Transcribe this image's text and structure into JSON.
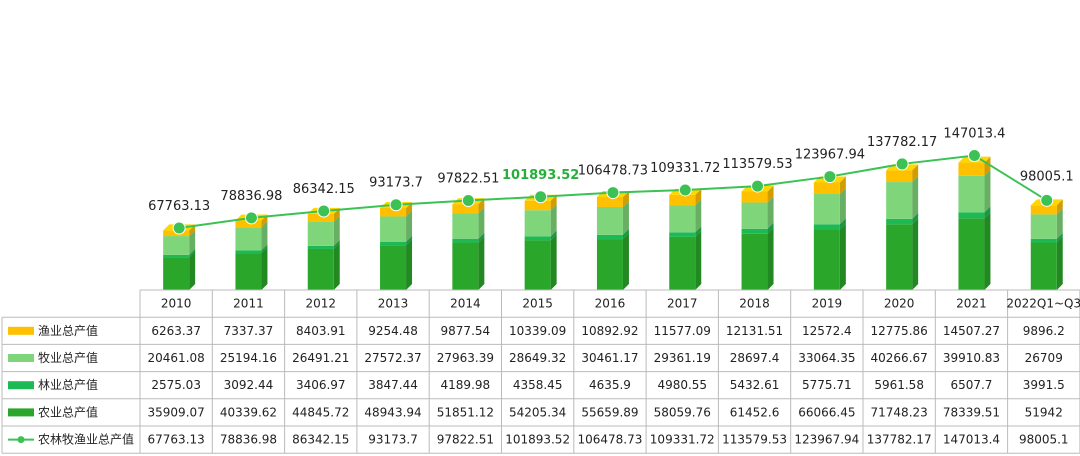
{
  "chart_data": {
    "type": "bar",
    "categories": [
      "2010",
      "2011",
      "2012",
      "2013",
      "2014",
      "2015",
      "2016",
      "2017",
      "2018",
      "2019",
      "2020",
      "2021",
      "2022Q1~Q3"
    ],
    "series": [
      {
        "name": "渔业总产值",
        "type": "bar",
        "color": "#ffc000",
        "values": [
          6263.37,
          7337.37,
          8403.91,
          9254.48,
          9877.54,
          10339.09,
          10892.92,
          11577.09,
          12131.51,
          12572.4,
          12775.86,
          14507.27,
          9896.2
        ]
      },
      {
        "name": "牧业总产值",
        "type": "bar",
        "color": "#7fd67a",
        "values": [
          20461.08,
          25194.16,
          26491.21,
          27572.37,
          27963.39,
          28649.32,
          30461.17,
          29361.19,
          28697.4,
          33064.35,
          40266.67,
          39910.83,
          26709
        ]
      },
      {
        "name": "林业总产值",
        "type": "bar",
        "color": "#1db954",
        "values": [
          2575.03,
          3092.44,
          3406.97,
          3847.44,
          4189.98,
          4358.45,
          4635.9,
          4980.55,
          5432.61,
          5775.71,
          5961.58,
          6507.7,
          3991.5
        ]
      },
      {
        "name": "农业总产值",
        "type": "bar",
        "color": "#2aa62a",
        "values": [
          35909.07,
          40339.62,
          44845.72,
          48943.94,
          51851.12,
          54205.34,
          55659.89,
          58059.76,
          61452.6,
          66066.45,
          71748.23,
          78339.51,
          51942
        ]
      },
      {
        "name": "农林牧渔业总产值",
        "type": "line",
        "color": "#3cc254",
        "values": [
          67763.13,
          78836.98,
          86342.15,
          93173.7,
          97822.51,
          101893.52,
          106478.73,
          109331.72,
          113579.53,
          123967.94,
          137782.17,
          147013.4,
          98005.1
        ]
      }
    ],
    "point_labels": [
      "67763.13",
      "78836.98",
      "86342.15",
      "93173.7",
      "97822.51",
      "101893.52",
      "106478.73",
      "109331.72",
      "113579.53",
      "123967.94",
      "137782.17",
      "147013.4",
      "98005.1"
    ],
    "highlight_label_index": 5,
    "highlight_color": "#27ae39",
    "table": {
      "rows": [
        {
          "name": "渔业总产值",
          "cells": [
            "6263.37",
            "7337.37",
            "8403.91",
            "9254.48",
            "9877.54",
            "10339.09",
            "10892.92",
            "11577.09",
            "12131.51",
            "12572.4",
            "12775.86",
            "14507.27",
            "9896.2"
          ]
        },
        {
          "name": "牧业总产值",
          "cells": [
            "20461.08",
            "25194.16",
            "26491.21",
            "27572.37",
            "27963.39",
            "28649.32",
            "30461.17",
            "29361.19",
            "28697.4",
            "33064.35",
            "40266.67",
            "39910.83",
            "26709"
          ]
        },
        {
          "name": "林业总产值",
          "cells": [
            "2575.03",
            "3092.44",
            "3406.97",
            "3847.44",
            "4189.98",
            "4358.45",
            "4635.9",
            "4980.55",
            "5432.61",
            "5775.71",
            "5961.58",
            "6507.7",
            "3991.5"
          ]
        },
        {
          "name": "农业总产值",
          "cells": [
            "35909.07",
            "40339.62",
            "44845.72",
            "48943.94",
            "51851.12",
            "54205.34",
            "55659.89",
            "58059.76",
            "61452.6",
            "66066.45",
            "71748.23",
            "78339.51",
            "51942"
          ]
        },
        {
          "name": "农林牧渔业总产值",
          "cells": [
            "67763.13",
            "78836.98",
            "86342.15",
            "93173.7",
            "97822.51",
            "101893.52",
            "106478.73",
            "109331.72",
            "113579.53",
            "123967.94",
            "137782.17",
            "147013.4",
            "98005.1"
          ]
        }
      ]
    },
    "legend": "data-table-left",
    "grid": false
  }
}
